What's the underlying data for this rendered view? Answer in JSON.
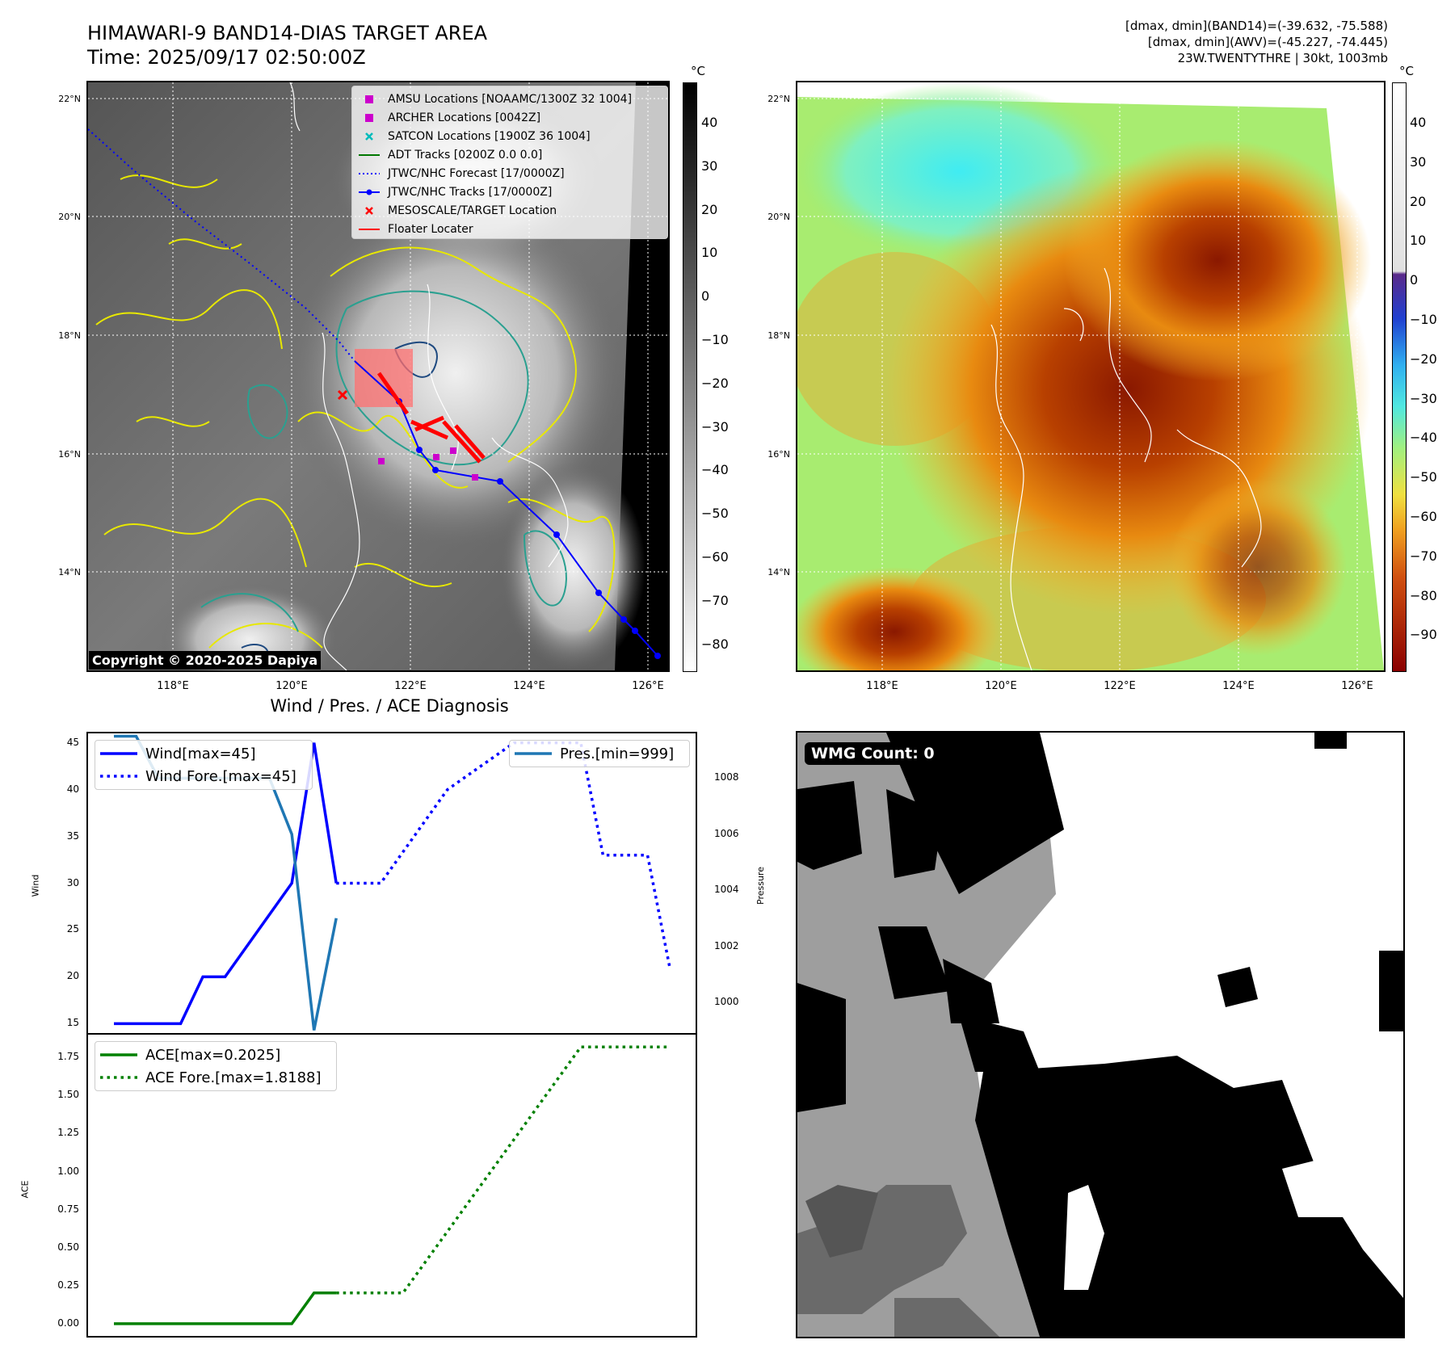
{
  "header": {
    "title_line1": "HIMAWARI-9 BAND14-DIAS TARGET AREA",
    "title_line2": "Time: 2025/09/17 02:50:00Z",
    "info_line1": "[dmax, dmin](BAND14)=(-39.632, -75.588)",
    "info_line2": "[dmax, dmin](AWV)=(-45.227, -74.445)",
    "info_line3": "23W.TWENTYTHRE | 30kt, 1003mb",
    "unit_left": "°C",
    "unit_right": "°C"
  },
  "map": {
    "lat_labels": [
      "22°N",
      "20°N",
      "18°N",
      "16°N",
      "14°N"
    ],
    "lon_labels": [
      "118°E",
      "120°E",
      "122°E",
      "124°E",
      "126°E"
    ],
    "copyright": "Copyright © 2020-2025 Dapiya",
    "legend": [
      {
        "label": "AMSU Locations [NOAAMC/1300Z 32 1004]",
        "symbol": "square",
        "color": "#cc00cc"
      },
      {
        "label": "ARCHER Locations [0042Z]",
        "symbol": "square",
        "color": "#cc00cc"
      },
      {
        "label": "SATCON Locations [1900Z 36 1004]",
        "symbol": "x",
        "color": "#00bbbb"
      },
      {
        "label": "ADT Tracks [0200Z 0.0 0.0]",
        "symbol": "line",
        "color": "#007700"
      },
      {
        "label": "JTWC/NHC Forecast [17/0000Z]",
        "symbol": "dotted",
        "color": "#0000ff"
      },
      {
        "label": "JTWC/NHC Tracks [17/0000Z]",
        "symbol": "line-dot",
        "color": "#0000ff"
      },
      {
        "label": "MESOSCALE/TARGET Location",
        "symbol": "x",
        "color": "#ff0000"
      },
      {
        "label": "Floater Locater",
        "symbol": "line",
        "color": "#ff0000"
      }
    ],
    "colorbar_left_ticks": [
      "40",
      "30",
      "20",
      "10",
      "0",
      "−10",
      "−20",
      "−30",
      "−40",
      "−50",
      "−60",
      "−70",
      "−80"
    ],
    "colorbar_right_ticks": [
      "40",
      "30",
      "20",
      "10",
      "0",
      "−10",
      "−20",
      "−30",
      "−40",
      "−50",
      "−60",
      "−70",
      "−80",
      "−90"
    ]
  },
  "chart_data": [
    {
      "type": "line",
      "title": "Wind / Pres. / ACE Diagnosis",
      "ylabel": "Wind",
      "ylabel_right": "Pressure",
      "ylim": [
        14,
        46
      ],
      "ylim_right": [
        998.9,
        1009.6
      ],
      "yticks": [
        "45",
        "40",
        "35",
        "30",
        "25",
        "20",
        "15"
      ],
      "yticks_right": [
        "1008",
        "1006",
        "1004",
        "1002",
        "1000"
      ],
      "x": [
        0,
        1,
        2,
        3,
        4,
        5,
        6,
        7,
        8,
        9,
        10,
        11,
        12,
        13,
        14,
        15,
        16,
        17,
        18,
        19,
        20,
        21,
        22,
        23,
        24
      ],
      "series": [
        {
          "name": "Wind[max=45]",
          "axis": "left",
          "style": "solid",
          "color": "#0000ff",
          "points": [
            [
              0,
              15
            ],
            [
              2,
              15
            ],
            [
              3,
              15
            ],
            [
              4,
              20
            ],
            [
              5,
              20
            ],
            [
              8,
              30
            ],
            [
              9,
              45
            ],
            [
              10,
              30
            ]
          ]
        },
        {
          "name": "Wind Fore.[max=45]",
          "axis": "left",
          "style": "dotted",
          "color": "#0000ff",
          "points": [
            [
              10,
              30
            ],
            [
              12,
              30
            ],
            [
              15,
              40
            ],
            [
              18,
              45
            ],
            [
              21,
              45
            ],
            [
              22,
              33
            ],
            [
              24,
              33
            ],
            [
              25,
              21
            ]
          ]
        },
        {
          "name": "Pres.[min=999]",
          "axis": "right",
          "style": "solid",
          "color": "#1f77b4",
          "points": [
            [
              0,
              1009.5
            ],
            [
              1,
              1009.5
            ],
            [
              2,
              1008
            ],
            [
              7,
              1008
            ],
            [
              8,
              1006
            ],
            [
              9,
              999
            ],
            [
              10,
              1003
            ]
          ]
        }
      ]
    },
    {
      "type": "line",
      "ylabel": "ACE",
      "ylim": [
        -0.08,
        1.9
      ],
      "yticks": [
        "1.75",
        "1.50",
        "1.25",
        "1.00",
        "0.75",
        "0.50",
        "0.25",
        "0.00"
      ],
      "series": [
        {
          "name": "ACE[max=0.2025]",
          "style": "solid",
          "color": "#008000",
          "points": [
            [
              0,
              0
            ],
            [
              8,
              0
            ],
            [
              9,
              0.2025
            ],
            [
              10,
              0.2025
            ]
          ]
        },
        {
          "name": "ACE Fore.[max=1.8188]",
          "style": "dotted",
          "color": "#008000",
          "points": [
            [
              10,
              0.2025
            ],
            [
              13,
              0.2025
            ],
            [
              21,
              1.8188
            ],
            [
              25,
              1.8188
            ]
          ]
        }
      ]
    }
  ],
  "wmg": {
    "label": "WMG Count: 0"
  }
}
